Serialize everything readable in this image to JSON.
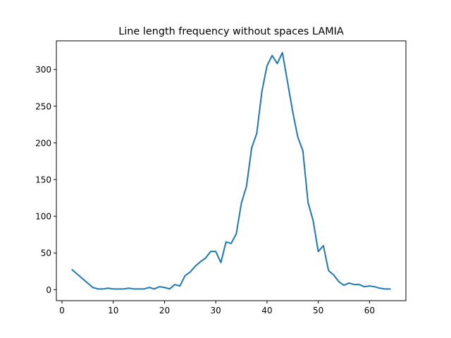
{
  "chart_data": {
    "type": "line",
    "title": "Line length frequency without spaces LAMIA",
    "xlabel": "",
    "ylabel": "",
    "xlim": [
      -1.1,
      67.1
    ],
    "ylim": [
      -15.0,
      339.0
    ],
    "xticks": [
      0,
      10,
      20,
      30,
      40,
      50,
      60
    ],
    "yticks": [
      0,
      50,
      100,
      150,
      200,
      250,
      300
    ],
    "grid": false,
    "color": "#1f77b4",
    "series": [
      {
        "x": [
          2,
          3,
          4,
          5,
          6,
          7,
          8,
          9,
          10,
          11,
          12,
          13,
          14,
          15,
          16,
          17,
          18,
          19,
          20,
          21,
          22,
          23,
          24,
          25,
          26,
          27,
          28,
          29,
          30,
          31,
          32,
          33,
          34,
          35,
          36,
          37,
          38,
          39,
          40,
          41,
          42,
          43,
          44,
          45,
          46,
          47,
          48,
          49,
          50,
          51,
          52,
          53,
          54,
          55,
          56,
          57,
          58,
          59,
          60,
          61,
          62,
          63,
          64
        ],
        "values": [
          27,
          21,
          15,
          9,
          3,
          1,
          1,
          2,
          1,
          1,
          1,
          2,
          1,
          1,
          1,
          3,
          1,
          4,
          3,
          1,
          7,
          5,
          19,
          24,
          32,
          38,
          43,
          52,
          52,
          37,
          65,
          63,
          76,
          118,
          141,
          193,
          213,
          270,
          305,
          319,
          308,
          323,
          283,
          243,
          208,
          189,
          119,
          94,
          52,
          60,
          26,
          20,
          11,
          6,
          9,
          7,
          7,
          4,
          5,
          4,
          2,
          1,
          1
        ]
      }
    ]
  }
}
